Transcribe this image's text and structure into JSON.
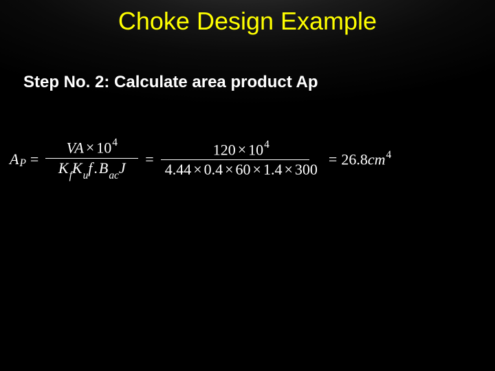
{
  "colors": {
    "background": "#000000",
    "title": "#ffff00",
    "text": "#ffffff"
  },
  "title": "Choke Design Example",
  "step": "Step No. 2: Calculate area product Ap",
  "equation": {
    "lhs_symbol": "A",
    "lhs_sub": "P",
    "frac1": {
      "num_left": "VA",
      "num_mult": "×",
      "num_ten": "10",
      "num_exp": "4",
      "den_Kf": "K",
      "den_Kf_sub": "f",
      "den_Ku": "K",
      "den_Ku_sub": "u",
      "den_f": "f",
      "den_dot": ".",
      "den_Bac": "B",
      "den_Bac_sub": "ac",
      "den_J": "J"
    },
    "frac2": {
      "num_val": "120",
      "num_mult": "×",
      "num_ten": "10",
      "num_exp": "4",
      "den_v1": "4.44",
      "den_v2": "0.4",
      "den_v3": "60",
      "den_v4": "1.4",
      "den_v5": "300",
      "mult": "×"
    },
    "result_val": "26.8",
    "result_unit": "cm",
    "result_exp": "4",
    "eq": "="
  }
}
